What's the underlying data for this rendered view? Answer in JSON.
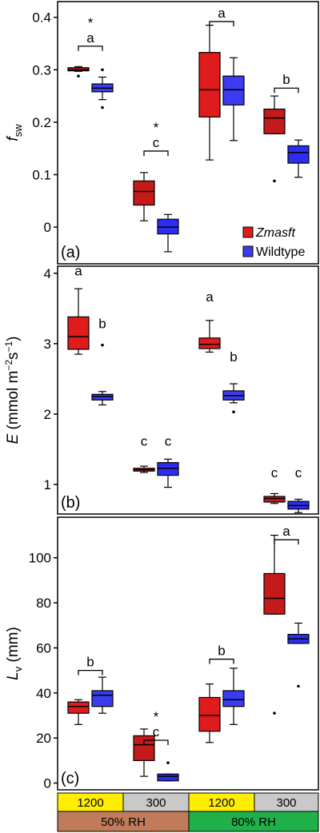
{
  "legend": {
    "placement": "bottom-right of panel (a)",
    "entries": [
      {
        "name": "Zmasft",
        "color": "#e01b1b"
      },
      {
        "name": "Wildtype",
        "color": "#3b3bf0"
      }
    ]
  },
  "colors": {
    "zmasft_high": "#e01b1b",
    "zmasft_low": "#c41a1a",
    "wildtype_high": "#3b3bf0",
    "wildtype_low": "#2d2df0",
    "yellow": "#ffee00",
    "gray": "#c9c9c9",
    "brown": "#c07b5a",
    "green": "#1fb04a"
  },
  "xaxis_labels": {
    "row1": [
      "1200",
      "300",
      "1200",
      "300"
    ],
    "row2": [
      "50% RH",
      "80% RH"
    ]
  },
  "chart_data": [
    {
      "type": "box",
      "panel_label": "(a)",
      "ylabel_main": "f",
      "ylabel_sub": "sw",
      "ylim": [
        -0.07,
        0.43
      ],
      "yticks": [
        0,
        0.1,
        0.2,
        0.3,
        0.4
      ],
      "ytick_labels": [
        "0",
        "0.1",
        "0.2",
        "0.3",
        "0.4"
      ],
      "boxes": [
        {
          "group": 0,
          "series": "Zmasft",
          "min": 0.297,
          "q1": 0.298,
          "median": 0.3,
          "q3": 0.304,
          "max": 0.306,
          "outliers": [
            0.288
          ]
        },
        {
          "group": 0,
          "series": "Wildtype",
          "min": 0.243,
          "q1": 0.258,
          "median": 0.265,
          "q3": 0.273,
          "max": 0.286,
          "outliers": [
            0.3,
            0.228
          ]
        },
        {
          "group": 1,
          "series": "Zmasft",
          "min": 0.012,
          "q1": 0.042,
          "median": 0.068,
          "q3": 0.088,
          "max": 0.104,
          "outliers": []
        },
        {
          "group": 1,
          "series": "Wildtype",
          "min": -0.047,
          "q1": -0.013,
          "median": 0.0,
          "q3": 0.015,
          "max": 0.024,
          "outliers": []
        },
        {
          "group": 2,
          "series": "Zmasft",
          "min": 0.128,
          "q1": 0.21,
          "median": 0.262,
          "q3": 0.333,
          "max": 0.385,
          "outliers": []
        },
        {
          "group": 2,
          "series": "Wildtype",
          "min": 0.165,
          "q1": 0.233,
          "median": 0.262,
          "q3": 0.288,
          "max": 0.323,
          "outliers": []
        },
        {
          "group": 3,
          "series": "Zmasft",
          "min": 0.178,
          "q1": 0.178,
          "median": 0.208,
          "q3": 0.225,
          "max": 0.25,
          "outliers": [
            0.088
          ]
        },
        {
          "group": 3,
          "series": "Wildtype",
          "min": 0.095,
          "q1": 0.122,
          "median": 0.142,
          "q3": 0.155,
          "max": 0.166,
          "outliers": []
        }
      ],
      "annotations": [
        {
          "group": 0,
          "letter": "a",
          "star": true,
          "bracket": true,
          "y": 0.345
        },
        {
          "group": 1,
          "letter": "c",
          "star": true,
          "bracket": true,
          "y": 0.145
        },
        {
          "group": 2,
          "letter": "a",
          "star": false,
          "bracket": true,
          "y": 0.392
        },
        {
          "group": 3,
          "letter": "b",
          "star": false,
          "bracket": true,
          "y": 0.265
        }
      ]
    },
    {
      "type": "box",
      "panel_label": "(b)",
      "ylabel_main": "E",
      "ylabel_unit": " (mmol m",
      "ylabel_exp1": "−2",
      "ylabel_mid": "s",
      "ylabel_exp2": "−1",
      "ylabel_end": ")",
      "ylim": [
        0.58,
        4.1
      ],
      "yticks": [
        1,
        2,
        3,
        4
      ],
      "ytick_labels": [
        "1",
        "2",
        "3",
        "4"
      ],
      "boxes": [
        {
          "group": 0,
          "series": "Zmasft",
          "min": 2.85,
          "q1": 2.92,
          "median": 3.1,
          "q3": 3.38,
          "max": 3.78,
          "outliers": []
        },
        {
          "group": 0,
          "series": "Wildtype",
          "min": 2.13,
          "q1": 2.2,
          "median": 2.25,
          "q3": 2.28,
          "max": 2.32,
          "outliers": [
            2.98
          ]
        },
        {
          "group": 1,
          "series": "Zmasft",
          "min": 1.17,
          "q1": 1.19,
          "median": 1.21,
          "q3": 1.23,
          "max": 1.26,
          "outliers": []
        },
        {
          "group": 1,
          "series": "Wildtype",
          "min": 0.96,
          "q1": 1.13,
          "median": 1.23,
          "q3": 1.31,
          "max": 1.36,
          "outliers": []
        },
        {
          "group": 2,
          "series": "Zmasft",
          "min": 2.88,
          "q1": 2.93,
          "median": 2.99,
          "q3": 3.08,
          "max": 3.33,
          "outliers": []
        },
        {
          "group": 2,
          "series": "Wildtype",
          "min": 2.16,
          "q1": 2.2,
          "median": 2.26,
          "q3": 2.33,
          "max": 2.43,
          "outliers": [
            2.03
          ]
        },
        {
          "group": 3,
          "series": "Zmasft",
          "min": 0.73,
          "q1": 0.75,
          "median": 0.8,
          "q3": 0.83,
          "max": 0.87,
          "outliers": []
        },
        {
          "group": 3,
          "series": "Wildtype",
          "min": 0.6,
          "q1": 0.65,
          "median": 0.7,
          "q3": 0.76,
          "max": 0.79,
          "outliers": []
        }
      ],
      "annotations": [
        {
          "group": 0,
          "series": "Zmasft",
          "letter": "a",
          "y": 3.97
        },
        {
          "group": 0,
          "series": "Wildtype",
          "letter": "b",
          "y": 3.22
        },
        {
          "group": 1,
          "series": "Zmasft",
          "letter": "c",
          "y": 1.55
        },
        {
          "group": 1,
          "series": "Wildtype",
          "letter": "c",
          "y": 1.55
        },
        {
          "group": 2,
          "series": "Zmasft",
          "letter": "a",
          "y": 3.6
        },
        {
          "group": 2,
          "series": "Wildtype",
          "letter": "b",
          "y": 2.75
        },
        {
          "group": 3,
          "series": "Zmasft",
          "letter": "c",
          "y": 1.1
        },
        {
          "group": 3,
          "series": "Wildtype",
          "letter": "c",
          "y": 1.1
        }
      ]
    },
    {
      "type": "box",
      "panel_label": "(c)",
      "ylabel_main": "L",
      "ylabel_sub": "v",
      "ylabel_unit": " (mm)",
      "ylim": [
        -3,
        118
      ],
      "yticks": [
        0,
        20,
        40,
        60,
        80,
        100
      ],
      "ytick_labels": [
        "0",
        "20",
        "40",
        "60",
        "80",
        "100"
      ],
      "boxes": [
        {
          "group": 0,
          "series": "Zmasft",
          "min": 26,
          "q1": 31,
          "median": 34,
          "q3": 36,
          "max": 37,
          "outliers": []
        },
        {
          "group": 0,
          "series": "Wildtype",
          "min": 31,
          "q1": 34,
          "median": 39,
          "q3": 41,
          "max": 47,
          "outliers": []
        },
        {
          "group": 1,
          "series": "Zmasft",
          "min": 3,
          "q1": 10,
          "median": 17,
          "q3": 21,
          "max": 24,
          "outliers": []
        },
        {
          "group": 1,
          "series": "Wildtype",
          "min": 1,
          "q1": 1,
          "median": 3,
          "q3": 4,
          "max": 4,
          "outliers": [
            9
          ]
        },
        {
          "group": 2,
          "series": "Zmasft",
          "min": 18,
          "q1": 23,
          "median": 30,
          "q3": 38,
          "max": 44,
          "outliers": []
        },
        {
          "group": 2,
          "series": "Wildtype",
          "min": 26,
          "q1": 34,
          "median": 37,
          "q3": 41,
          "max": 51,
          "outliers": []
        },
        {
          "group": 3,
          "series": "Zmasft",
          "min": 75,
          "q1": 75,
          "median": 82,
          "q3": 93,
          "max": 110,
          "outliers": [
            31
          ]
        },
        {
          "group": 3,
          "series": "Wildtype",
          "min": 62,
          "q1": 62,
          "median": 64,
          "q3": 66,
          "max": 71,
          "outliers": [
            43
          ]
        }
      ],
      "annotations": [
        {
          "group": 0,
          "letter": "b",
          "star": false,
          "bracket": true,
          "y": 50
        },
        {
          "group": 1,
          "letter": "c",
          "star": true,
          "bracket": true,
          "y": 19
        },
        {
          "group": 2,
          "letter": "b",
          "star": false,
          "bracket": true,
          "y": 55
        },
        {
          "group": 3,
          "letter": "a",
          "star": false,
          "bracket": true,
          "y": 108
        }
      ]
    }
  ]
}
